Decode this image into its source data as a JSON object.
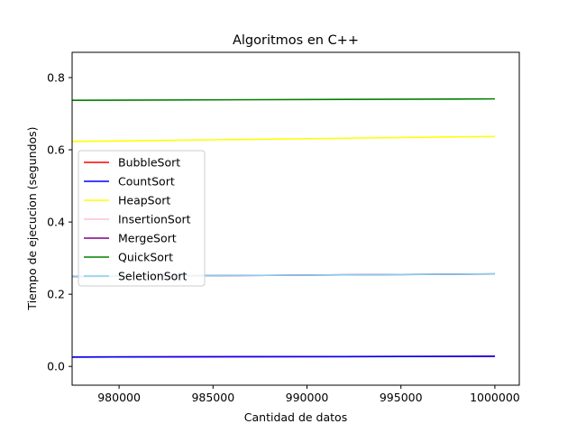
{
  "chart_data": {
    "type": "line",
    "title": "Algoritmos en C++",
    "xlabel": "Cantidad de datos",
    "ylabel": "Tiempo de ejecucion (segundos)",
    "xlim": [
      977500,
      1001300
    ],
    "ylim": [
      -0.052,
      0.87
    ],
    "x_ticks": [
      980000,
      985000,
      990000,
      995000,
      1000000
    ],
    "y_ticks": [
      0.0,
      0.2,
      0.4,
      0.6,
      0.8
    ],
    "x_tick_labels": [
      "980000",
      "985000",
      "990000",
      "995000",
      "1000000"
    ],
    "y_tick_labels": [
      "0.0",
      "0.2",
      "0.4",
      "0.6",
      "0.8"
    ],
    "legend_position": "center-left",
    "series": [
      {
        "name": "BubbleSort",
        "color": "#ff0000",
        "x": [
          977500,
          1000000
        ],
        "y": [
          0.026,
          0.028
        ]
      },
      {
        "name": "CountSort",
        "color": "#0000ff",
        "x": [
          977500,
          1000000
        ],
        "y": [
          0.026,
          0.028
        ]
      },
      {
        "name": "HeapSort",
        "color": "#ffff00",
        "x": [
          977500,
          1000000
        ],
        "y": [
          0.623,
          0.637
        ]
      },
      {
        "name": "InsertionSort",
        "color": "#ffc0cb",
        "x": [
          977500,
          1000000
        ],
        "y": [
          0.249,
          0.256
        ]
      },
      {
        "name": "MergeSort",
        "color": "#800080",
        "x": [
          977500,
          1000000
        ],
        "y": [
          0.249,
          0.256
        ]
      },
      {
        "name": "QuickSort",
        "color": "#008000",
        "x": [
          977500,
          1000000
        ],
        "y": [
          0.737,
          0.741
        ]
      },
      {
        "name": "SeletionSort",
        "color": "#87ceeb",
        "x": [
          977500,
          1000000
        ],
        "y": [
          0.249,
          0.256
        ]
      }
    ]
  }
}
